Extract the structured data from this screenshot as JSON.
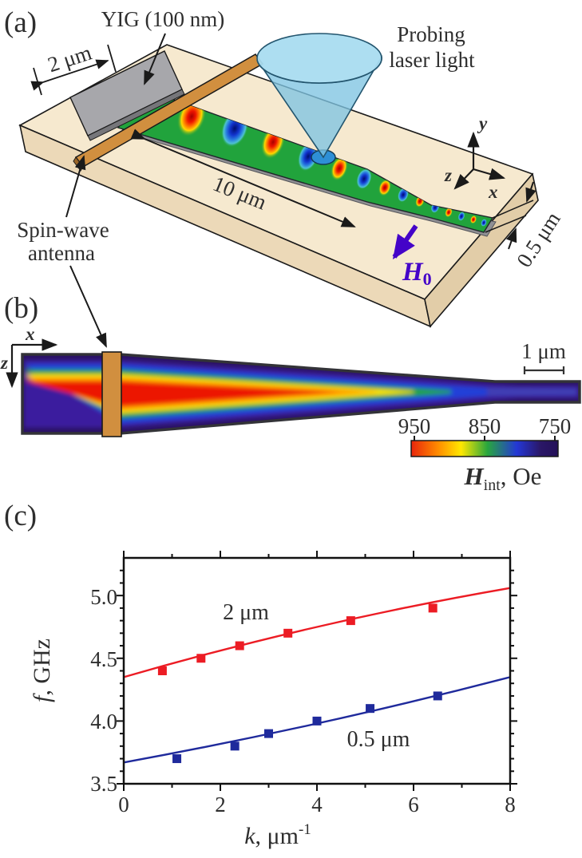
{
  "figure": {
    "panel_a": {
      "label": "(a)",
      "yig_label": "YIG (100 nm)",
      "width_top_label": "2 μm",
      "probing_line1": "Probing",
      "probing_line2": "laser light",
      "length_label": "10 μm",
      "antenna_line1": "Spin-wave",
      "antenna_line2": "antenna",
      "field_label": "H",
      "field_sub": "0",
      "field_color": "#4403c8",
      "width_narrow_label": "0.5 μm",
      "axis_x": "x",
      "axis_y": "y",
      "axis_z": "z"
    },
    "panel_b": {
      "label": "(b)",
      "axis_x": "x",
      "axis_z": "z",
      "scalebar_label": "1 μm",
      "colorbar": {
        "tick_labels": [
          "950",
          "850",
          "750"
        ],
        "title_h": "H",
        "title_sub": "int",
        "title_rest": ", Oe",
        "gradient": [
          "#e8250c",
          "#ff8a00",
          "#ffe800",
          "#28a63e",
          "#2437d6",
          "#241058"
        ]
      }
    },
    "panel_c": {
      "label": "(c)",
      "ylabel_italic": "f",
      "ylabel_rest": ", GHz",
      "xlabel_italic": "k",
      "xlabel_rest": ", μm",
      "xlabel_sup": "-1",
      "chart_data": {
        "type": "scatter",
        "title": "",
        "xlabel": "k, μm⁻¹",
        "ylabel": "f, GHz",
        "xlim": [
          0,
          8
        ],
        "ylim": [
          3.5,
          5.3
        ],
        "xticks": [
          "0",
          "2",
          "4",
          "6",
          "8"
        ],
        "yticks": [
          "3.5",
          "4.0",
          "4.5",
          "5.0"
        ],
        "x_minor_step": 1,
        "y_minor_step": 0.1,
        "grid": false,
        "legend_position": "inline-labels",
        "series": [
          {
            "name": "2 μm",
            "color": "#ec1c24",
            "marker": "square",
            "points": [
              [
                0.8,
                4.4
              ],
              [
                1.6,
                4.5
              ],
              [
                2.4,
                4.6
              ],
              [
                3.4,
                4.7
              ],
              [
                4.7,
                4.8
              ],
              [
                6.4,
                4.9
              ]
            ],
            "fit_line": {
              "start": [
                0,
                4.35
              ],
              "mid": [
                4,
                4.75
              ],
              "end": [
                8,
                5.06
              ]
            }
          },
          {
            "name": "0.5 μm",
            "color": "#1f2a9c",
            "marker": "square",
            "points": [
              [
                1.1,
                3.7
              ],
              [
                2.3,
                3.8
              ],
              [
                3.0,
                3.9
              ],
              [
                4.0,
                4.0
              ],
              [
                5.1,
                4.1
              ],
              [
                6.5,
                4.2
              ]
            ],
            "fit_line": {
              "start": [
                0,
                3.67
              ],
              "mid": [
                4,
                3.98
              ],
              "end": [
                8,
                4.35
              ]
            }
          }
        ]
      }
    }
  }
}
